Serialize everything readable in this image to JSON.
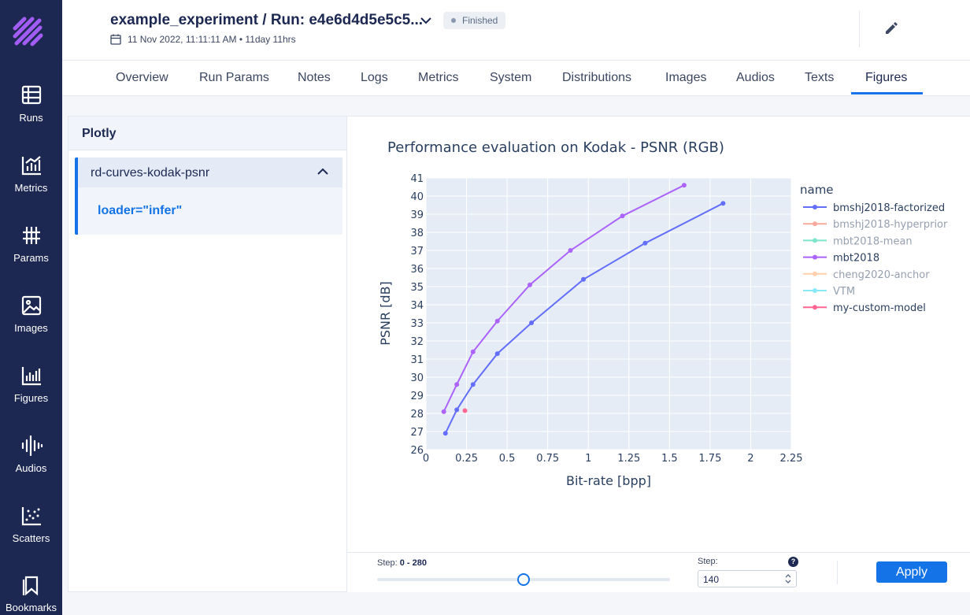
{
  "sidebar": {
    "logo": "aim-logo",
    "items": [
      {
        "label": "Runs",
        "icon": "runs-table-icon"
      },
      {
        "label": "Metrics",
        "icon": "metrics-chart-icon"
      },
      {
        "label": "Params",
        "icon": "params-grid-icon"
      },
      {
        "label": "Images",
        "icon": "image-icon"
      },
      {
        "label": "Figures",
        "icon": "figures-chart-icon"
      },
      {
        "label": "Audios",
        "icon": "audio-wave-icon"
      },
      {
        "label": "Scatters",
        "icon": "scatter-icon"
      },
      {
        "label": "Bookmarks",
        "icon": "bookmark-icon"
      }
    ]
  },
  "header": {
    "title": "example_experiment / Run: e4e6d4d5e5c5...",
    "status": "Finished",
    "date": "11 Nov 2022, 11:11:11 AM • 11day 11hrs"
  },
  "tabs": [
    "Overview",
    "Run Params",
    "Notes",
    "Logs",
    "Metrics",
    "System",
    "Distributions",
    "Images",
    "Audios",
    "Texts",
    "Figures"
  ],
  "active_tab": "Figures",
  "left_panel": {
    "title": "Plotly",
    "group_title": "rd-curves-kodak-psnr",
    "item": "loader=\"infer\""
  },
  "bottom": {
    "step_label": "Step:",
    "step_range": "0 - 280",
    "step_input_label": "Step:",
    "step_value": "140",
    "apply_label": "Apply",
    "slider_position": 0.5
  },
  "chart_data": {
    "type": "line",
    "title": "Performance evaluation on Kodak - PSNR (RGB)",
    "xlabel": "Bit-rate [bpp]",
    "ylabel": "PSNR [dB]",
    "xlim": [
      0,
      2.25
    ],
    "ylim": [
      26,
      41
    ],
    "x_ticks": [
      "0",
      "0.25",
      "0.5",
      "0.75",
      "1",
      "1.25",
      "1.5",
      "1.75",
      "2",
      "2.25"
    ],
    "y_ticks": [
      "26",
      "27",
      "28",
      "29",
      "30",
      "31",
      "32",
      "33",
      "34",
      "35",
      "36",
      "37",
      "38",
      "39",
      "40",
      "41"
    ],
    "grid": true,
    "legend_title": "name",
    "legend_position": "right",
    "series": [
      {
        "name": "bmshj2018-factorized",
        "color": "#636efa",
        "visible": true,
        "x": [
          0.12,
          0.19,
          0.29,
          0.44,
          0.65,
          0.97,
          1.35,
          1.83
        ],
        "y": [
          26.9,
          28.2,
          29.6,
          31.3,
          33.0,
          35.4,
          37.4,
          39.6
        ]
      },
      {
        "name": "bmshj2018-hyperprior",
        "color": "#ef553b",
        "visible": false,
        "x": [],
        "y": []
      },
      {
        "name": "mbt2018-mean",
        "color": "#00cc96",
        "visible": false,
        "x": [],
        "y": []
      },
      {
        "name": "mbt2018",
        "color": "#ab63fa",
        "visible": true,
        "x": [
          0.11,
          0.19,
          0.29,
          0.44,
          0.64,
          0.89,
          1.21,
          1.59
        ],
        "y": [
          28.1,
          29.6,
          31.4,
          33.1,
          35.1,
          37.0,
          38.9,
          40.6
        ]
      },
      {
        "name": "cheng2020-anchor",
        "color": "#ffa15a",
        "visible": false,
        "x": [],
        "y": []
      },
      {
        "name": "VTM",
        "color": "#19d3f3",
        "visible": false,
        "x": [],
        "y": []
      },
      {
        "name": "my-custom-model",
        "color": "#ff6692",
        "visible": true,
        "x": [
          0.24
        ],
        "y": [
          28.15
        ]
      }
    ]
  }
}
